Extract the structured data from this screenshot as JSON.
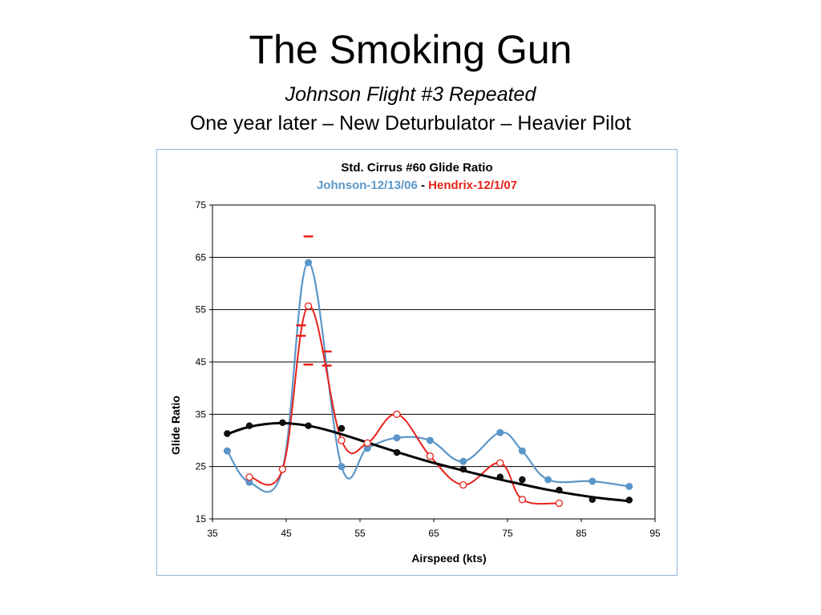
{
  "slide": {
    "title": "The Smoking Gun",
    "subtitle1": "Johnson Flight #3 Repeated",
    "subtitle2": "One year later – New Deturbulator – Heavier Pilot"
  },
  "colors": {
    "johnson": "#5b96c8",
    "hendrix": "#e8211a",
    "trend": "#000000",
    "frame": "#8eb4d8"
  },
  "chart_data": {
    "type": "line",
    "title": "Std. Cirrus #60 Glide Ratio",
    "subtitle_parts": [
      {
        "text": "Johnson-12/13/06",
        "color": "#5b96c8"
      },
      {
        "text": " - ",
        "color": "#000000"
      },
      {
        "text": "Hendrix-12/1/07",
        "color": "#e8211a"
      }
    ],
    "xlabel": "Airspeed (kts)",
    "ylabel": "Glide Ratio",
    "xlim": [
      35,
      95
    ],
    "ylim": [
      15,
      75
    ],
    "x_ticks": [
      35,
      45,
      55,
      65,
      75,
      85,
      95
    ],
    "y_ticks": [
      15,
      25,
      35,
      45,
      55,
      65,
      75
    ],
    "grid": "horizontal",
    "series": [
      {
        "name": "Johnson-12/13/06",
        "color": "#5b96c8",
        "marker": "filled-circle",
        "x": [
          37,
          40,
          44.5,
          48,
          52.5,
          56,
          60,
          64.5,
          69,
          74,
          77,
          80.5,
          86.5,
          91.5
        ],
        "y": [
          28,
          22,
          24.5,
          64,
          25,
          28.5,
          30.5,
          30,
          26,
          31.5,
          28,
          22.5,
          22.2,
          21.2
        ]
      },
      {
        "name": "Hendrix-12/1/07",
        "color": "#e8211a",
        "marker": "open-circle",
        "x": [
          40,
          44.5,
          48,
          52.5,
          56,
          60,
          64.5,
          69,
          74,
          77,
          82
        ],
        "y": [
          23,
          24.5,
          55.7,
          30,
          29.5,
          35,
          27,
          21.5,
          25.7,
          18.7,
          18
        ]
      },
      {
        "name": "",
        "color": "#000000",
        "marker": "filled-circle",
        "x": [
          37,
          40,
          44.5,
          48,
          52.5,
          56,
          60,
          64.5,
          69,
          74,
          77,
          82,
          86.5,
          91.5
        ],
        "y": [
          31.3,
          32.8,
          33.4,
          32.8,
          32.3,
          29.5,
          27.7,
          27,
          24.5,
          23,
          22.5,
          20.5,
          18.7,
          18.6
        ]
      }
    ],
    "trend": {
      "color": "#000000",
      "x": [
        37,
        40,
        44,
        48,
        52,
        56,
        60,
        64,
        68,
        72,
        76,
        80,
        84,
        88,
        91.5
      ],
      "y": [
        31.2,
        32.6,
        33.3,
        32.8,
        31.4,
        29.6,
        27.8,
        26.1,
        24.6,
        23.2,
        21.9,
        20.7,
        19.7,
        18.9,
        18.4
      ]
    },
    "error_marks": [
      {
        "x": 48,
        "y": 69,
        "color": "#e8211a"
      },
      {
        "x": 47,
        "y": 52,
        "color": "#e8211a"
      },
      {
        "x": 47,
        "y": 50,
        "color": "#e8211a"
      },
      {
        "x": 48,
        "y": 44.5,
        "color": "#e8211a"
      },
      {
        "x": 50.5,
        "y": 47,
        "color": "#e8211a"
      },
      {
        "x": 50.5,
        "y": 44.3,
        "color": "#e8211a"
      }
    ]
  }
}
